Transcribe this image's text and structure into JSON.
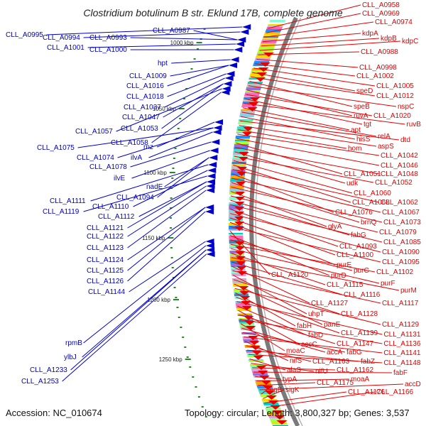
{
  "title": "Clostridium botulinum B str. Eklund 17B, complete genome",
  "footer": {
    "accession": "Accession: NC_010674",
    "topology": "Topology: circular; Length: 3,800,327 bp; Genes: 3,537"
  },
  "scale_labels": [
    "1000 kbp",
    "1050 kbp",
    "1100 kbp",
    "1150 kbp",
    "1200 kbp",
    "1250 kbp"
  ],
  "colors": {
    "reverse_strand": "#0000cc",
    "forward_strand": "#e60000",
    "backbone": "#7a7a7a",
    "tick": "#228b22",
    "scale_text": "#222222"
  },
  "reverse_strand_labels": [
    "CLL_A0995",
    "CLL_A0994",
    "CLL_A0993",
    "CLL_A0987",
    "CLL_A1001",
    "CLL_A1000",
    "hpt",
    "CLL_A1009",
    "CLL_A1016",
    "CLL_A1018",
    "CLL_A1037",
    "CLL_A1047",
    "CLL_A1053",
    "CLL_A1057",
    "CLL_A1058",
    "rnz",
    "CLL_A1075",
    "CLL_A1074",
    "ilvA",
    "CLL_A1078",
    "ilvE",
    "nadE",
    "CLL_A1094",
    "CLL_A1111",
    "CLL_A1110",
    "CLL_A1119",
    "CLL_A1112",
    "CLL_A1121",
    "CLL_A1122",
    "CLL_A1123",
    "CLL_A1124",
    "CLL_A1125",
    "CLL_A1126",
    "CLL_A1144",
    "rpmB",
    "ylbJ",
    "CLL_A1233",
    "CLL_A1253"
  ],
  "forward_strand_labels": [
    "CLL_A0958",
    "CLL_A0969",
    "CLL_A0974",
    "kdpA",
    "kdpB",
    "kdpC",
    "CLL_A0988",
    "CLL_A0998",
    "CLL_A1002",
    "CLL_A1005",
    "speD",
    "CLL_A1012",
    "speB",
    "nspC",
    "ruvA",
    "CLL_A1020",
    "tgt",
    "ruvB",
    "apt",
    "relA",
    "hisS",
    "dtd",
    "aspS",
    "hom",
    "CLL_A1042",
    "CLL_A1046",
    "CLL_A1051",
    "CLL_A1048",
    "udk",
    "CLL_A1052",
    "CLL_A1060",
    "CLL_A1068",
    "CLL_A1062",
    "CLL_A1076",
    "CLL_A1067",
    "brnQ",
    "CLL_A1073",
    "glyA",
    "CLL_A1079",
    "fabG",
    "CLL_A1085",
    "CLL_A1093",
    "CLL_A1090",
    "CLL_A1100",
    "purE",
    "CLL_A1095",
    "CLL_A1120",
    "purD",
    "purC",
    "CLL_A1102",
    "purF",
    "CLL_A1115",
    "purM",
    "CLL_A1116",
    "CLL_A1127",
    "CLL_A1117",
    "uhpT",
    "CLL_A1128",
    "panE",
    "CLL_A1129",
    "fabH",
    "CLL_A1139",
    "CLL_A1131",
    "fabD",
    "accC",
    "CLL_A1147",
    "CLL_A1136",
    "moaC",
    "accA",
    "fabG",
    "CLL_A1141",
    "nifS",
    "CLL_A1163",
    "fabZ",
    "CLL_A1148",
    "alaS",
    "nifU",
    "CLL_A1162",
    "fabF",
    "typA",
    "moaA",
    "CLL_A1175",
    "accD",
    "sigE",
    "sigK",
    "CLL_A1176",
    "CLL_A1166"
  ]
}
